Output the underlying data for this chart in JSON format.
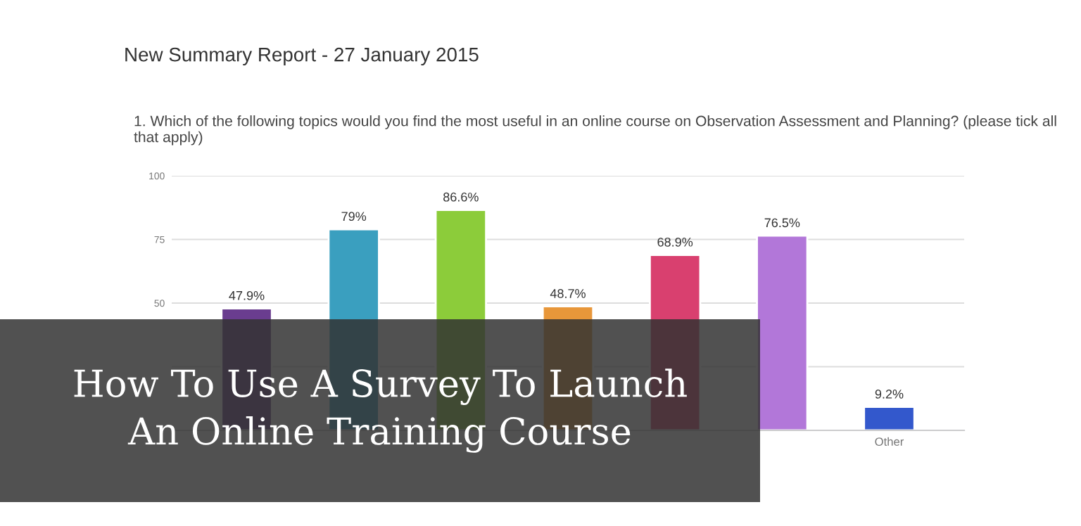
{
  "chart_data": {
    "type": "bar",
    "title": "New Summary Report - 27 January 2015",
    "subtitle": "1. Which of the following topics would you find the most useful in an online course on Observation Assessment and Planning? (please tick all that apply)",
    "categories": [
      null,
      null,
      null,
      null,
      null,
      null,
      "Other"
    ],
    "values": [
      47.9,
      79,
      86.6,
      48.7,
      68.9,
      76.5,
      9.2
    ],
    "colors": [
      "#6a3d8f",
      "#3a9fbf",
      "#8ccc3a",
      "#e8973a",
      "#d9406f",
      "#b277d9",
      "#3358cc"
    ],
    "value_labels": [
      "47.9%",
      "79%",
      "86.6%",
      "48.7%",
      "68.9%",
      "76.5%",
      "9.2%"
    ],
    "ylim": [
      0,
      100
    ],
    "yticks": [
      {
        "value": 0,
        "label": null
      },
      {
        "value": 25,
        "label": null
      },
      50,
      75,
      100
    ],
    "grid": "y",
    "annotations": [
      "How To Use A Survey To Launch\nAn Online Training Course"
    ]
  }
}
